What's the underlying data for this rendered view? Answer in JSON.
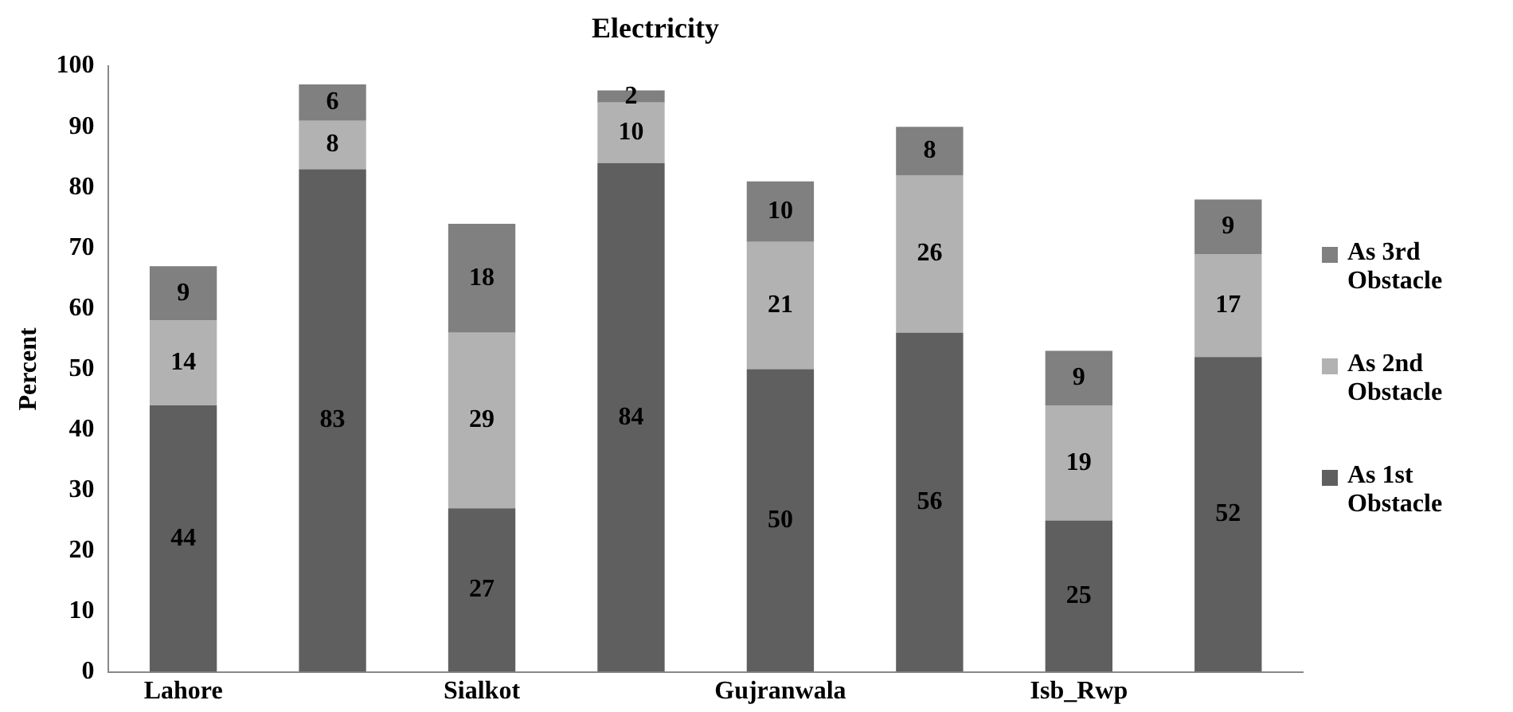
{
  "chart_data": {
    "type": "bar",
    "title": "Electricity",
    "ylabel": "Percent",
    "stacked": true,
    "categories": [
      "Lahore",
      null,
      "Sialkot",
      null,
      "Gujranwala",
      null,
      "Isb_Rwp",
      null
    ],
    "series": [
      {
        "name": "As 1st Obstacle",
        "color": "#5f5f5f",
        "values": [
          44,
          83,
          27,
          84,
          50,
          56,
          25,
          52
        ]
      },
      {
        "name": "As 2nd Obstacle",
        "color": "#b2b2b2",
        "values": [
          14,
          8,
          29,
          10,
          21,
          26,
          19,
          17
        ]
      },
      {
        "name": "As 3rd Obstacle",
        "color": "#808080",
        "values": [
          9,
          6,
          18,
          2,
          10,
          8,
          9,
          9
        ]
      }
    ],
    "ylim": [
      0,
      100
    ],
    "yticks": [
      0,
      10,
      20,
      30,
      40,
      50,
      60,
      70,
      80,
      90,
      100
    ],
    "grid": false,
    "legend": "right",
    "data_labels": true
  }
}
